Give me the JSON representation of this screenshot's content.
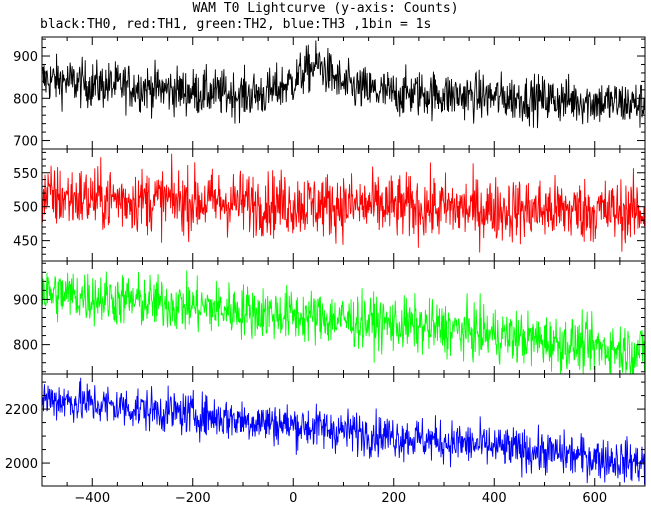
{
  "title": "WAM T0 Lightcurve (y-axis: Counts)",
  "subtitle": "black:TH0, red:TH1, green:TH2, blue:TH3 ,1bin = 1s",
  "chart_data": {
    "type": "line",
    "title": "WAM T0 Lightcurve (y-axis: Counts)",
    "subtitle": "black:TH0, red:TH1, green:TH2, blue:TH3 ,1bin = 1s",
    "ylabel": "Counts",
    "xlim": [
      -500,
      700
    ],
    "x_ticks": [
      -400,
      -200,
      0,
      200,
      400,
      600
    ],
    "bin_size_s": 1,
    "series": [
      {
        "name": "TH0",
        "color": "#000000",
        "ylim": [
          680,
          945
        ],
        "y_ticks": [
          700,
          800,
          900
        ],
        "x": [
          -500,
          -450,
          -400,
          -350,
          -300,
          -250,
          -200,
          -150,
          -100,
          -50,
          0,
          25,
          50,
          75,
          100,
          150,
          200,
          250,
          300,
          350,
          400,
          450,
          500,
          550,
          600,
          650,
          700
        ],
        "values": [
          845,
          840,
          832,
          830,
          826,
          820,
          815,
          812,
          808,
          812,
          840,
          865,
          880,
          855,
          830,
          818,
          810,
          812,
          808,
          805,
          803,
          800,
          798,
          796,
          792,
          788,
          785
        ],
        "noise": 28
      },
      {
        "name": "TH1",
        "color": "#ff0000",
        "ylim": [
          420,
          585
        ],
        "y_ticks": [
          450,
          500,
          550
        ],
        "x": [
          -500,
          -400,
          -300,
          -200,
          -100,
          0,
          100,
          200,
          300,
          400,
          500,
          600,
          700
        ],
        "values": [
          515,
          512,
          510,
          508,
          506,
          504,
          502,
          500,
          498,
          496,
          495,
          494,
          492
        ],
        "noise": 24
      },
      {
        "name": "TH2",
        "color": "#00ff00",
        "ylim": [
          735,
          985
        ],
        "y_ticks": [
          800,
          900
        ],
        "x": [
          -500,
          -400,
          -300,
          -200,
          -100,
          0,
          100,
          200,
          300,
          400,
          500,
          600,
          700
        ],
        "values": [
          915,
          905,
          895,
          885,
          875,
          865,
          855,
          845,
          835,
          822,
          808,
          795,
          785
        ],
        "noise": 30
      },
      {
        "name": "TH3",
        "color": "#0000ff",
        "ylim": [
          1915,
          2330
        ],
        "y_ticks": [
          2000,
          2200
        ],
        "x": [
          -500,
          -400,
          -300,
          -200,
          -100,
          0,
          100,
          200,
          300,
          400,
          500,
          600,
          700
        ],
        "values": [
          2240,
          2220,
          2200,
          2180,
          2160,
          2140,
          2120,
          2100,
          2080,
          2060,
          2040,
          2020,
          2000
        ],
        "noise": 40
      }
    ]
  }
}
